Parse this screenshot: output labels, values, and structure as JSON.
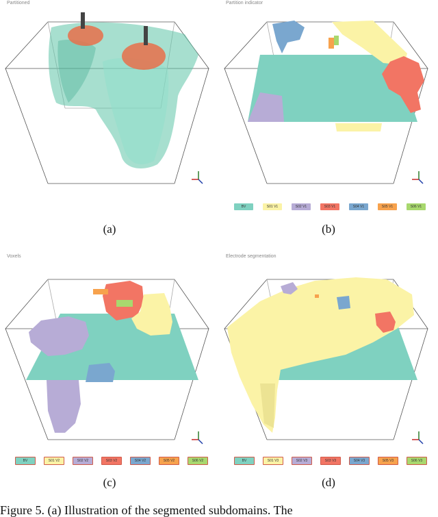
{
  "panels": [
    {
      "id": "a",
      "label": "(a)",
      "title": "Partitioned"
    },
    {
      "id": "b",
      "label": "(b)",
      "title": "Partition indicator",
      "legend": [
        {
          "text": "BV",
          "color": "#7fd1c0"
        },
        {
          "text": "S01 V1",
          "color": "#fbf3a6"
        },
        {
          "text": "S02 V1",
          "color": "#b7acd6"
        },
        {
          "text": "S03 V1",
          "color": "#f27564"
        },
        {
          "text": "S04 V1",
          "color": "#7aa7cf"
        },
        {
          "text": "S05 V1",
          "color": "#f7a24d"
        },
        {
          "text": "S06 V1",
          "color": "#a8d86e"
        }
      ]
    },
    {
      "id": "c",
      "label": "(c)",
      "title": "Voxels",
      "legend": [
        {
          "text": "BV",
          "color": "#7fd1c0"
        },
        {
          "text": "S01 V2",
          "color": "#fbf3a6"
        },
        {
          "text": "S02 V2",
          "color": "#b7acd6"
        },
        {
          "text": "S03 V2",
          "color": "#f27564"
        },
        {
          "text": "S04 V2",
          "color": "#7aa7cf"
        },
        {
          "text": "S05 V2",
          "color": "#f7a24d"
        },
        {
          "text": "S06 V2",
          "color": "#a8d86e"
        }
      ]
    },
    {
      "id": "d",
      "label": "(d)",
      "title": "Electrode segmentation",
      "legend": [
        {
          "text": "BV",
          "color": "#7fd1c0"
        },
        {
          "text": "S01 V3",
          "color": "#fbf3a6"
        },
        {
          "text": "S02 V3",
          "color": "#b7acd6"
        },
        {
          "text": "S03 V3",
          "color": "#f27564"
        },
        {
          "text": "S04 V3",
          "color": "#7aa7cf"
        },
        {
          "text": "S05 V3",
          "color": "#f7a24d"
        },
        {
          "text": "S06 V3",
          "color": "#a8d86e"
        }
      ]
    }
  ],
  "caption": "Figure 5. (a) Illustration of the segmented subdomains. The"
}
